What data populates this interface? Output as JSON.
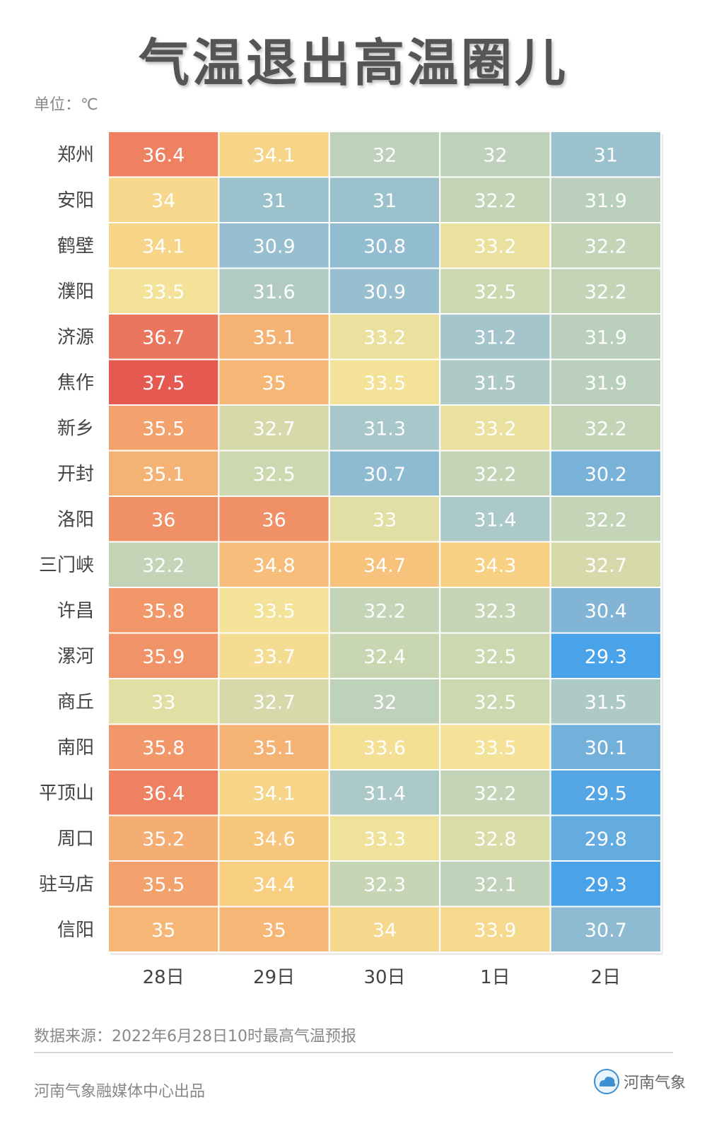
{
  "title": "气温退出高温圈儿",
  "unit_label": "单位：℃",
  "source_label": "数据来源：2022年6月28日10时最高气温预报",
  "producer_label": "河南气象融媒体中心出品",
  "brand_name": "河南气象",
  "brand_icon": "cloud-logo-icon",
  "colors": {
    "scale": [
      "#4aa3e8",
      "#7fb4d6",
      "#a9c8c9",
      "#c8d6b3",
      "#f3e49a",
      "#f8cd80",
      "#f3a46f",
      "#ec7e60",
      "#e45a51"
    ],
    "text_cool": "#ffffff",
    "text_mid": "#ffffff"
  },
  "chart_data": {
    "type": "heatmap",
    "title": "气温退出高温圈儿",
    "value_range": [
      29.3,
      37.5
    ],
    "columns": [
      "28日",
      "29日",
      "30日",
      "1日",
      "2日"
    ],
    "rows": [
      "郑州",
      "安阳",
      "鹤壁",
      "濮阳",
      "济源",
      "焦作",
      "新乡",
      "开封",
      "洛阳",
      "三门峡",
      "许昌",
      "漯河",
      "商丘",
      "南阳",
      "平顶山",
      "周口",
      "驻马店",
      "信阳"
    ],
    "values": [
      [
        36.4,
        34.1,
        32,
        32,
        31
      ],
      [
        34,
        31,
        31,
        32.2,
        31.9
      ],
      [
        34.1,
        30.9,
        30.8,
        33.2,
        32.2
      ],
      [
        33.5,
        31.6,
        30.9,
        32.5,
        32.2
      ],
      [
        36.7,
        35.1,
        33.2,
        31.2,
        31.9
      ],
      [
        37.5,
        35,
        33.5,
        31.5,
        31.9
      ],
      [
        35.5,
        32.7,
        31.3,
        33.2,
        32.2
      ],
      [
        35.1,
        32.5,
        30.7,
        32.2,
        30.2
      ],
      [
        36,
        36,
        33,
        31.4,
        32.2
      ],
      [
        32.2,
        34.8,
        34.7,
        34.3,
        32.7
      ],
      [
        35.8,
        33.5,
        32.2,
        32.3,
        30.4
      ],
      [
        35.9,
        33.7,
        32.4,
        32.5,
        29.3
      ],
      [
        33,
        32.7,
        32,
        32.5,
        31.5
      ],
      [
        35.8,
        35.1,
        33.6,
        33.5,
        30.1
      ],
      [
        36.4,
        34.1,
        31.4,
        32.2,
        29.5
      ],
      [
        35.2,
        34.6,
        33.3,
        32.8,
        29.8
      ],
      [
        35.5,
        34.4,
        32.3,
        32.1,
        29.3
      ],
      [
        35,
        35,
        34,
        33.9,
        30.7
      ]
    ]
  }
}
